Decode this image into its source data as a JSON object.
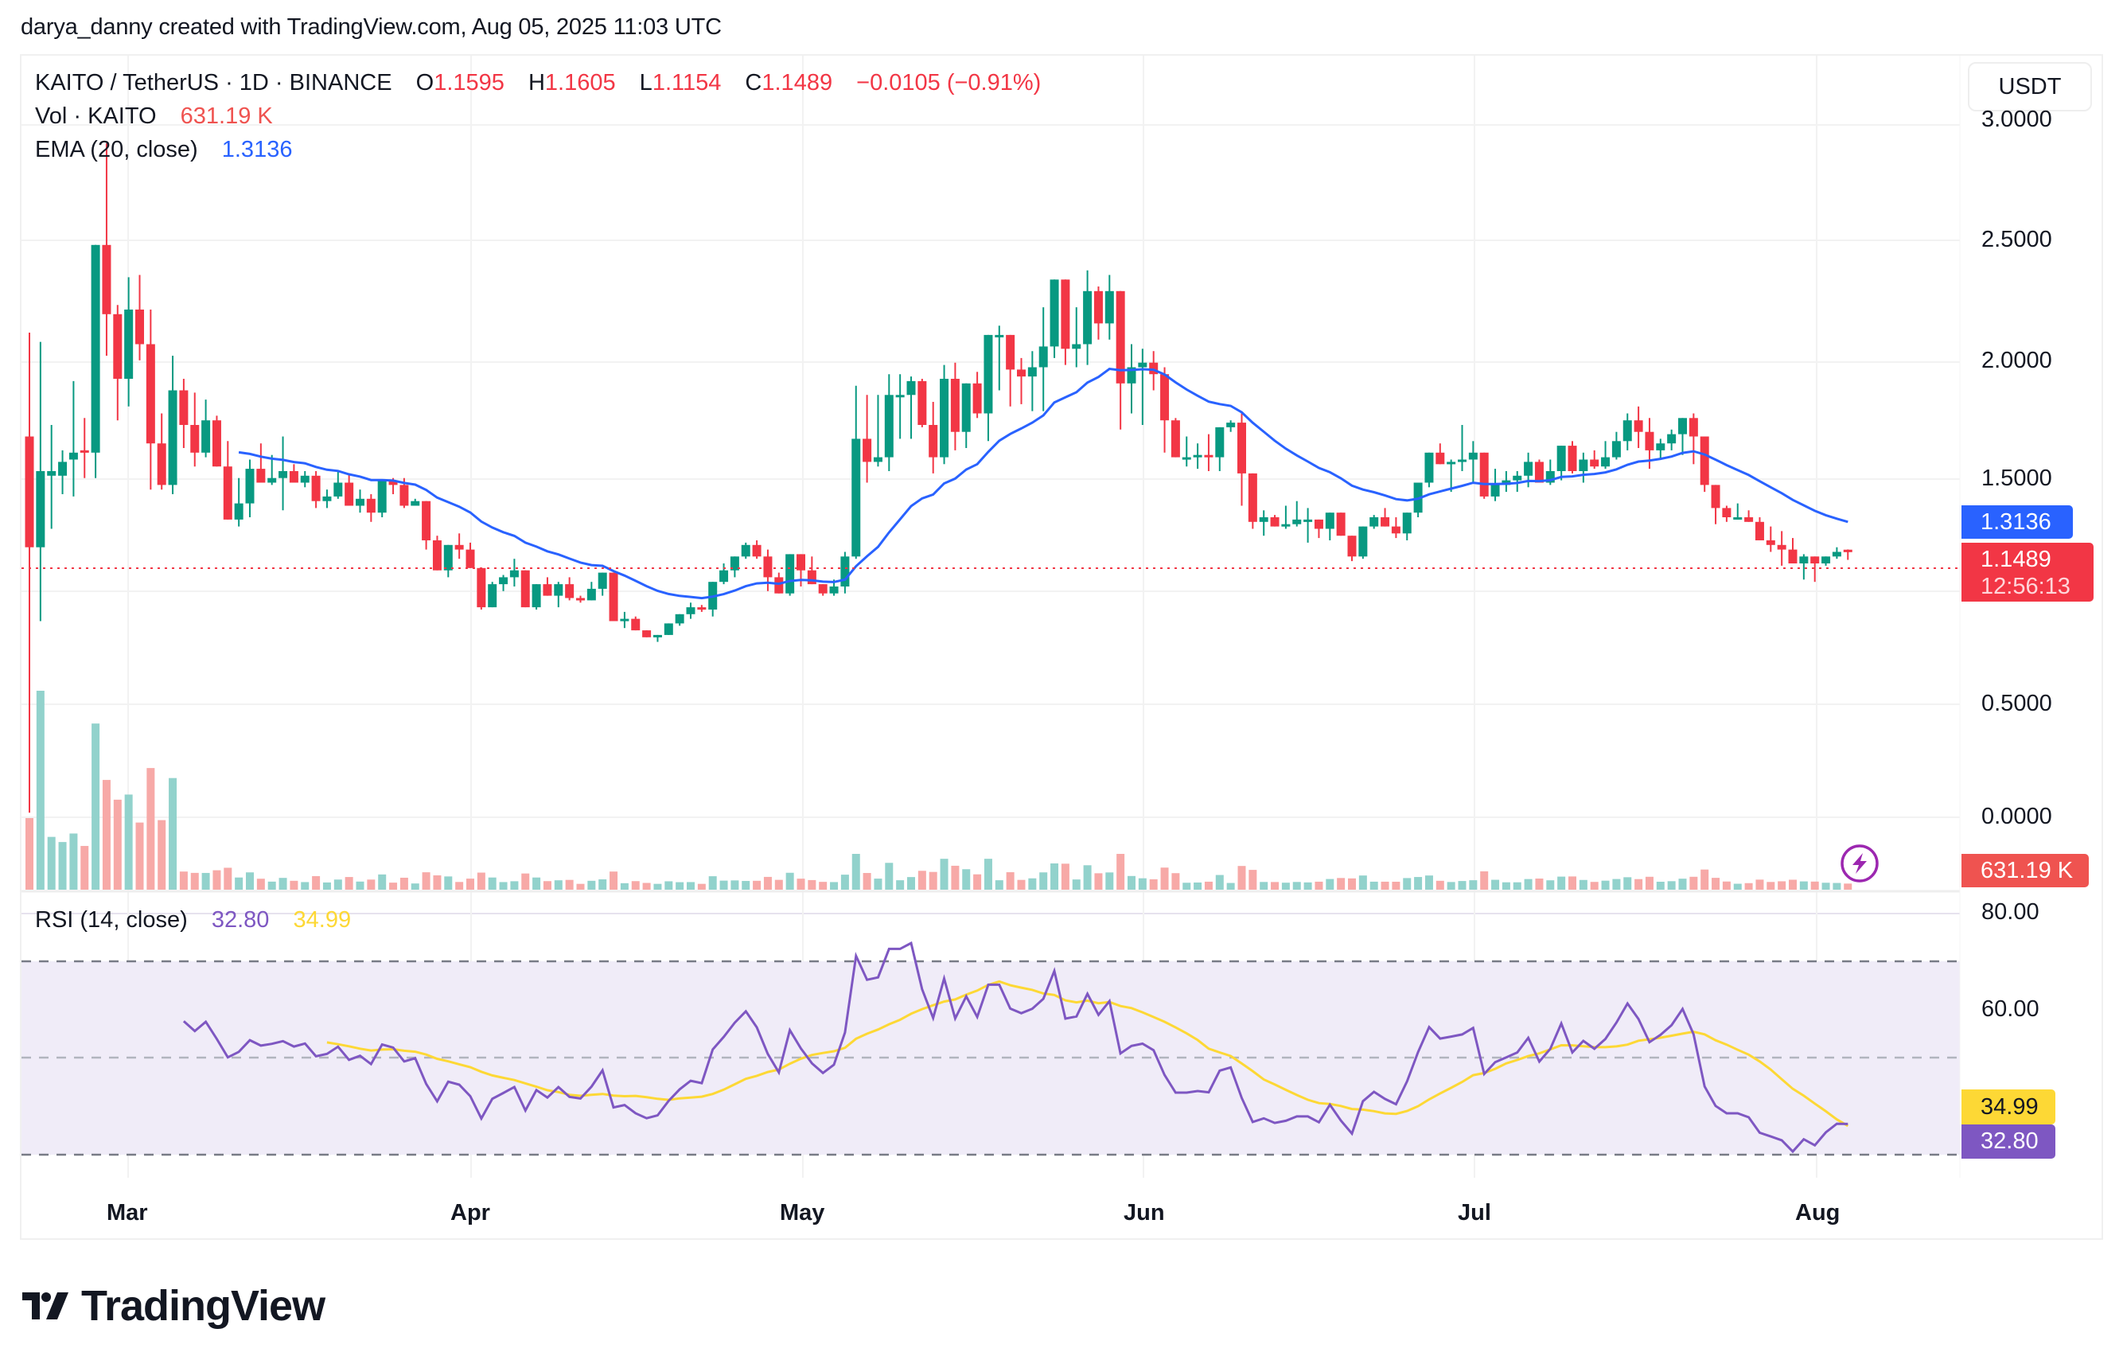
{
  "credit": "darya_danny created with TradingView.com, Aug 05, 2025 11:03 UTC",
  "header": {
    "symbol": "KAITO / TetherUS · 1D · BINANCE",
    "open_label": "O",
    "open": "1.1595",
    "high_label": "H",
    "high": "1.1605",
    "low_label": "L",
    "low": "1.1154",
    "close_label": "C",
    "close": "1.1489",
    "change": "−0.0105 (−0.91%)"
  },
  "volume_legend": {
    "label": "Vol · KAITO",
    "value": "631.19 K"
  },
  "ema_legend": {
    "label": "EMA (20, close)",
    "value": "1.3136"
  },
  "rsi_legend": {
    "label": "RSI (14, close)",
    "rsi": "32.80",
    "ma": "34.99"
  },
  "currency_button": "USDT",
  "price_axis": [
    "3.0000",
    "2.5000",
    "2.0000",
    "1.5000",
    "0.5000",
    "0.0000"
  ],
  "rsi_axis": [
    "80.00",
    "60.00"
  ],
  "tags": {
    "ema": "1.3136",
    "price": "1.1489",
    "countdown": "12:56:13",
    "volume": "631.19 K",
    "rsi_ma": "34.99",
    "rsi": "32.80"
  },
  "time_axis": [
    "Mar",
    "Apr",
    "May",
    "Jun",
    "Jul",
    "Aug"
  ],
  "brand": "TradingView",
  "colors": {
    "up": "#089981",
    "down": "#f23645",
    "vol_up": "#92d2cc",
    "vol_down": "#f7a9a7",
    "ema": "#2962ff",
    "rsi": "#7e57c2",
    "rsi_ma": "#fdd835",
    "rsi_band": "#f0ecf8",
    "grid": "#f2f2f2",
    "alert": "#9c27b0"
  },
  "chart_data": {
    "type": "candlestick",
    "title": "KAITO / TetherUS · 1D · BINANCE",
    "xlabel": "",
    "ylabel": "USDT",
    "ylim": [
      0,
      3.0
    ],
    "x_ticks": [
      "Mar",
      "Apr",
      "May",
      "Jun",
      "Jul",
      "Aug"
    ],
    "y_ticks": [
      0.0,
      0.5,
      1.5,
      2.0,
      2.5,
      3.0
    ],
    "last": {
      "open": 1.1595,
      "high": 1.1605,
      "low": 1.1154,
      "close": 1.1489,
      "change": -0.0105,
      "change_pct": -0.91
    },
    "ema20_last": 1.3136,
    "volume_last": "631.19K",
    "rsi": {
      "period": 14,
      "value": 32.8,
      "ma": 34.99,
      "levels": [
        30,
        50,
        70
      ],
      "ylim": [
        20,
        85
      ]
    },
    "start_date": "2025-02-20",
    "ohlc": [
      [
        1.65,
        2.1,
        0.02,
        1.17
      ],
      [
        1.17,
        2.06,
        0.85,
        1.5
      ],
      [
        1.48,
        1.7,
        1.25,
        1.5
      ],
      [
        1.48,
        1.59,
        1.4,
        1.54
      ],
      [
        1.55,
        1.89,
        1.39,
        1.58
      ],
      [
        1.59,
        1.73,
        1.47,
        1.58
      ],
      [
        1.58,
        1.78,
        1.47,
        2.48
      ],
      [
        2.48,
        2.92,
        2.0,
        2.18
      ],
      [
        2.18,
        2.22,
        1.72,
        1.9
      ],
      [
        1.9,
        2.34,
        1.78,
        2.2
      ],
      [
        2.2,
        2.35,
        1.98,
        2.05
      ],
      [
        2.05,
        2.2,
        1.42,
        1.62
      ],
      [
        1.62,
        1.75,
        1.42,
        1.44
      ],
      [
        1.44,
        2.0,
        1.4,
        1.85
      ],
      [
        1.85,
        1.9,
        1.6,
        1.7
      ],
      [
        1.7,
        1.84,
        1.52,
        1.58
      ],
      [
        1.58,
        1.81,
        1.56,
        1.72
      ],
      [
        1.72,
        1.74,
        1.53,
        1.52
      ],
      [
        1.52,
        1.63,
        1.37,
        1.29
      ],
      [
        1.29,
        1.47,
        1.26,
        1.36
      ],
      [
        1.36,
        1.55,
        1.3,
        1.51
      ],
      [
        1.51,
        1.62,
        1.45,
        1.45
      ],
      [
        1.45,
        1.57,
        1.44,
        1.47
      ],
      [
        1.47,
        1.65,
        1.33,
        1.5
      ],
      [
        1.5,
        1.53,
        1.45,
        1.45
      ],
      [
        1.45,
        1.5,
        1.43,
        1.48
      ],
      [
        1.48,
        1.5,
        1.34,
        1.37
      ],
      [
        1.37,
        1.42,
        1.34,
        1.39
      ],
      [
        1.39,
        1.5,
        1.38,
        1.45
      ],
      [
        1.45,
        1.49,
        1.35,
        1.35
      ],
      [
        1.35,
        1.42,
        1.32,
        1.38
      ],
      [
        1.38,
        1.4,
        1.28,
        1.32
      ],
      [
        1.32,
        1.46,
        1.3,
        1.46
      ],
      [
        1.46,
        1.47,
        1.4,
        1.44
      ],
      [
        1.44,
        1.47,
        1.34,
        1.35
      ],
      [
        1.35,
        1.38,
        1.36,
        1.37
      ],
      [
        1.37,
        1.35,
        1.16,
        1.2
      ],
      [
        1.2,
        1.22,
        1.08,
        1.07
      ],
      [
        1.07,
        1.18,
        1.04,
        1.18
      ],
      [
        1.18,
        1.23,
        1.12,
        1.16
      ],
      [
        1.16,
        1.19,
        1.08,
        1.08
      ],
      [
        1.08,
        1.07,
        0.9,
        0.91
      ],
      [
        0.91,
        1.02,
        0.91,
        1.01
      ],
      [
        1.01,
        1.05,
        0.98,
        1.04
      ],
      [
        1.04,
        1.12,
        1.0,
        1.07
      ],
      [
        1.07,
        1.06,
        0.91,
        0.91
      ],
      [
        0.91,
        1.01,
        0.9,
        1.01
      ],
      [
        1.01,
        1.04,
        0.98,
        0.96
      ],
      [
        0.96,
        1.02,
        0.91,
        1.01
      ],
      [
        1.01,
        1.04,
        0.94,
        0.95
      ],
      [
        0.95,
        0.96,
        0.93,
        0.94
      ],
      [
        0.94,
        1.02,
        0.94,
        0.99
      ],
      [
        0.99,
        1.06,
        0.96,
        1.06
      ],
      [
        1.06,
        1.05,
        0.95,
        0.85
      ],
      [
        0.85,
        0.89,
        0.82,
        0.86
      ],
      [
        0.86,
        0.87,
        0.81,
        0.81
      ],
      [
        0.81,
        0.8,
        0.78,
        0.78
      ],
      [
        0.78,
        0.79,
        0.76,
        0.79
      ],
      [
        0.79,
        0.84,
        0.79,
        0.84
      ],
      [
        0.84,
        0.86,
        0.83,
        0.88
      ],
      [
        0.88,
        0.93,
        0.86,
        0.91
      ],
      [
        0.91,
        0.92,
        0.89,
        0.9
      ],
      [
        0.9,
        0.99,
        0.87,
        1.02
      ],
      [
        1.02,
        1.1,
        1.01,
        1.07
      ],
      [
        1.07,
        1.11,
        1.04,
        1.13
      ],
      [
        1.13,
        1.19,
        1.12,
        1.18
      ],
      [
        1.18,
        1.2,
        1.12,
        1.13
      ],
      [
        1.13,
        1.16,
        0.98,
        1.04
      ],
      [
        1.04,
        1.06,
        0.99,
        0.97
      ],
      [
        0.97,
        1.12,
        0.96,
        1.14
      ],
      [
        1.14,
        1.14,
        1.0,
        1.07
      ],
      [
        1.07,
        1.13,
        1.04,
        1.01
      ],
      [
        1.01,
        1.01,
        0.96,
        0.97
      ],
      [
        0.97,
        1.03,
        0.96,
        1.0
      ],
      [
        1.0,
        1.15,
        0.97,
        1.13
      ],
      [
        1.13,
        1.87,
        1.12,
        1.64
      ],
      [
        1.64,
        1.83,
        1.45,
        1.54
      ],
      [
        1.54,
        1.83,
        1.52,
        1.56
      ],
      [
        1.56,
        1.92,
        1.5,
        1.83
      ],
      [
        1.83,
        1.92,
        1.64,
        1.83
      ],
      [
        1.83,
        1.91,
        1.64,
        1.89
      ],
      [
        1.89,
        1.9,
        1.69,
        1.7
      ],
      [
        1.7,
        1.8,
        1.49,
        1.56
      ],
      [
        1.56,
        1.96,
        1.53,
        1.9
      ],
      [
        1.9,
        1.97,
        1.59,
        1.67
      ],
      [
        1.67,
        1.84,
        1.6,
        1.88
      ],
      [
        1.88,
        1.93,
        1.73,
        1.75
      ],
      [
        1.75,
        2.06,
        1.63,
        2.09
      ],
      [
        2.09,
        2.13,
        1.85,
        2.09
      ],
      [
        2.09,
        2.04,
        1.78,
        1.94
      ],
      [
        1.94,
        1.99,
        1.79,
        1.91
      ],
      [
        1.91,
        2.02,
        1.76,
        1.95
      ],
      [
        1.95,
        2.21,
        1.76,
        2.04
      ],
      [
        2.04,
        2.31,
        1.99,
        2.33
      ],
      [
        2.33,
        2.23,
        1.96,
        2.03
      ],
      [
        2.03,
        2.21,
        1.95,
        2.05
      ],
      [
        2.05,
        2.37,
        1.96,
        2.28
      ],
      [
        2.28,
        2.3,
        2.07,
        2.14
      ],
      [
        2.14,
        2.35,
        2.07,
        2.28
      ],
      [
        2.28,
        2.22,
        1.68,
        1.88
      ],
      [
        1.88,
        2.05,
        1.75,
        1.95
      ],
      [
        1.95,
        2.03,
        1.7,
        1.97
      ],
      [
        1.97,
        2.02,
        1.85,
        1.92
      ],
      [
        1.92,
        1.95,
        1.58,
        1.72
      ],
      [
        1.72,
        1.73,
        1.56,
        1.56
      ],
      [
        1.56,
        1.65,
        1.52,
        1.56
      ],
      [
        1.56,
        1.62,
        1.51,
        1.57
      ],
      [
        1.57,
        1.66,
        1.5,
        1.56
      ],
      [
        1.56,
        1.66,
        1.5,
        1.69
      ],
      [
        1.69,
        1.72,
        1.67,
        1.71
      ],
      [
        1.71,
        1.75,
        1.35,
        1.49
      ],
      [
        1.49,
        1.45,
        1.25,
        1.28
      ],
      [
        1.28,
        1.33,
        1.22,
        1.3
      ],
      [
        1.3,
        1.31,
        1.27,
        1.26
      ],
      [
        1.26,
        1.35,
        1.25,
        1.27
      ],
      [
        1.27,
        1.37,
        1.26,
        1.29
      ],
      [
        1.29,
        1.34,
        1.19,
        1.29
      ],
      [
        1.29,
        1.27,
        1.21,
        1.25
      ],
      [
        1.25,
        1.32,
        1.2,
        1.32
      ],
      [
        1.32,
        1.3,
        1.22,
        1.22
      ],
      [
        1.22,
        1.2,
        1.11,
        1.13
      ],
      [
        1.13,
        1.25,
        1.12,
        1.26
      ],
      [
        1.26,
        1.31,
        1.25,
        1.3
      ],
      [
        1.3,
        1.34,
        1.28,
        1.26
      ],
      [
        1.26,
        1.3,
        1.21,
        1.23
      ],
      [
        1.23,
        1.31,
        1.2,
        1.32
      ],
      [
        1.32,
        1.34,
        1.3,
        1.45
      ],
      [
        1.45,
        1.56,
        1.43,
        1.58
      ],
      [
        1.58,
        1.62,
        1.54,
        1.53
      ],
      [
        1.53,
        1.55,
        1.41,
        1.54
      ],
      [
        1.54,
        1.7,
        1.5,
        1.55
      ],
      [
        1.55,
        1.63,
        1.45,
        1.58
      ],
      [
        1.58,
        1.56,
        1.38,
        1.39
      ],
      [
        1.39,
        1.51,
        1.37,
        1.44
      ],
      [
        1.44,
        1.5,
        1.41,
        1.46
      ],
      [
        1.46,
        1.5,
        1.41,
        1.48
      ],
      [
        1.48,
        1.58,
        1.43,
        1.54
      ],
      [
        1.54,
        1.55,
        1.47,
        1.45
      ],
      [
        1.45,
        1.55,
        1.44,
        1.5
      ],
      [
        1.5,
        1.59,
        1.46,
        1.61
      ],
      [
        1.61,
        1.63,
        1.49,
        1.5
      ],
      [
        1.5,
        1.58,
        1.45,
        1.55
      ],
      [
        1.55,
        1.59,
        1.51,
        1.52
      ],
      [
        1.52,
        1.63,
        1.51,
        1.56
      ],
      [
        1.56,
        1.67,
        1.55,
        1.63
      ],
      [
        1.63,
        1.75,
        1.59,
        1.72
      ],
      [
        1.72,
        1.78,
        1.6,
        1.67
      ],
      [
        1.67,
        1.73,
        1.51,
        1.59
      ],
      [
        1.59,
        1.64,
        1.55,
        1.62
      ],
      [
        1.62,
        1.68,
        1.59,
        1.66
      ],
      [
        1.66,
        1.71,
        1.57,
        1.73
      ],
      [
        1.73,
        1.75,
        1.53,
        1.65
      ],
      [
        1.65,
        1.63,
        1.41,
        1.44
      ],
      [
        1.44,
        1.36,
        1.27,
        1.34
      ],
      [
        1.34,
        1.35,
        1.28,
        1.3
      ],
      [
        1.3,
        1.36,
        1.29,
        1.3
      ],
      [
        1.3,
        1.33,
        1.29,
        1.28
      ],
      [
        1.28,
        1.3,
        1.25,
        1.2
      ],
      [
        1.2,
        1.26,
        1.15,
        1.18
      ],
      [
        1.18,
        1.24,
        1.09,
        1.16
      ],
      [
        1.16,
        1.21,
        1.1,
        1.1
      ],
      [
        1.1,
        1.14,
        1.03,
        1.13
      ],
      [
        1.13,
        1.12,
        1.02,
        1.1
      ],
      [
        1.1,
        1.12,
        1.09,
        1.13
      ],
      [
        1.13,
        1.17,
        1.12,
        1.15
      ],
      [
        1.1595,
        1.1605,
        1.1154,
        1.1489
      ]
    ]
  }
}
